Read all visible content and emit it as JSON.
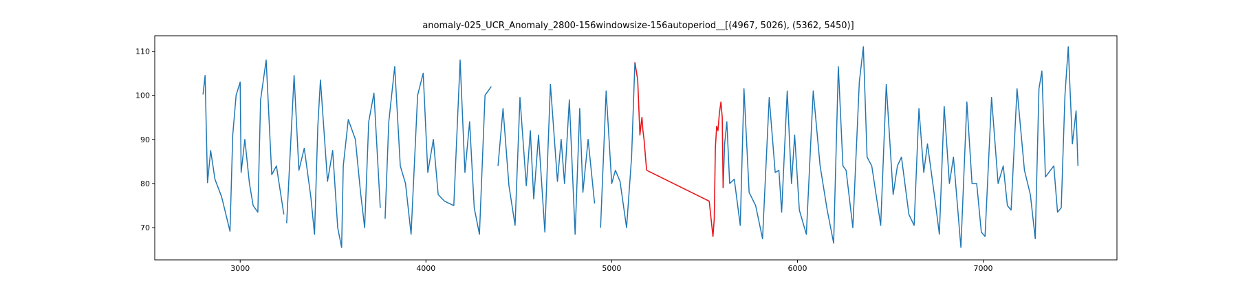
{
  "chart_data": {
    "type": "line",
    "title": "anomaly-025_UCR_Anomaly_2800-156windowsize-156autoperiod__[(4967, 5026), (5362, 5450)]",
    "xlabel": "",
    "ylabel": "",
    "xlim": [
      2540,
      7720
    ],
    "ylim": [
      62.7,
      113.5
    ],
    "xticks": [
      3000,
      4000,
      5000,
      6000,
      7000
    ],
    "yticks": [
      70,
      80,
      90,
      100,
      110
    ],
    "grid": false,
    "colors": {
      "series": "#1f77b4",
      "anomaly": "#e8161b"
    },
    "series": [
      {
        "x": [
          2800,
          2811,
          2824,
          2841,
          2864,
          2900,
          2945,
          2960,
          2978,
          3000,
          3005,
          3025,
          3050,
          3070,
          3095,
          3110,
          3140,
          3170,
          3195,
          3235
        ],
        "y": [
          100.2,
          104.5,
          80.2,
          87.5,
          81,
          77,
          69.2,
          91,
          100,
          103,
          82.5,
          90,
          80,
          75,
          73.5,
          99,
          108,
          82,
          84,
          73
        ]
      },
      {
        "x": [
          3250,
          3290,
          3316,
          3345,
          3380,
          3400,
          3418,
          3432,
          3470,
          3498,
          3525,
          3546,
          3555,
          3582,
          3620,
          3648,
          3670,
          3692,
          3720,
          3754
        ],
        "y": [
          71,
          104.5,
          83,
          88,
          77,
          68.5,
          93,
          103.5,
          80.5,
          87.5,
          70,
          65.5,
          84,
          94.5,
          90,
          78,
          70,
          94,
          100.5,
          74.5
        ]
      },
      {
        "x": [
          3780,
          3800,
          3832,
          3862,
          3890,
          3920,
          3955,
          3985,
          4010,
          4040,
          4066,
          4100,
          4150,
          4184,
          4210,
          4235,
          4260,
          4288,
          4318,
          4352
        ],
        "y": [
          72,
          94,
          106.5,
          84,
          80,
          68.5,
          100,
          105,
          82.5,
          90,
          77.5,
          76,
          75,
          108,
          82.5,
          94,
          74.5,
          68.5,
          100,
          102
        ]
      },
      {
        "x": [
          4388,
          4415,
          4447,
          4480,
          4506,
          4540,
          4562,
          4580,
          4606,
          4640,
          4670,
          4708,
          4728,
          4746,
          4772,
          4803,
          4828,
          4845,
          4873,
          4908
        ],
        "y": [
          84,
          97,
          79.5,
          70.5,
          99.5,
          79.5,
          92,
          76.5,
          91,
          69,
          102.5,
          80.5,
          90,
          80,
          99,
          68.5,
          97,
          78,
          90,
          75.5
        ]
      },
      {
        "x": [
          4940,
          4970,
          5000,
          5020,
          5045,
          5080,
          5107,
          5125
        ],
        "y": [
          70,
          101,
          80,
          83,
          80.5,
          70,
          86,
          107.5
        ]
      },
      {
        "x": [
          5600,
          5608,
          5620,
          5635,
          5660,
          5692,
          5712,
          5740,
          5775,
          5812,
          5848,
          5880,
          5900,
          5915,
          5945,
          5968,
          5985,
          6010,
          6048,
          6085,
          6100,
          6122,
          6160,
          6195,
          6220,
          6245,
          6262,
          6298,
          6333,
          6355,
          6375,
          6400,
          6448,
          6478,
          6515,
          6538,
          6560,
          6600,
          6628,
          6654,
          6680,
          6700,
          6740,
          6764,
          6790,
          6818,
          6840,
          6880,
          6912,
          6940,
          6965,
          6990,
          7010,
          7045,
          7080,
          7108,
          7130,
          7150,
          7182,
          7222,
          7254,
          7280,
          7300,
          7316,
          7335,
          7380,
          7400,
          7420,
          7440,
          7458,
          7480,
          7500,
          7510
        ],
        "y": [
          79,
          89,
          94,
          80,
          81,
          70.5,
          101.5,
          78,
          75,
          67.5,
          99.5,
          82.5,
          83,
          73.5,
          101,
          80,
          91,
          74,
          68.5,
          101,
          94,
          84,
          74,
          66.5,
          106.5,
          84,
          83,
          70,
          103,
          111,
          86,
          84,
          70.5,
          102.5,
          77.5,
          84,
          86,
          73,
          70.5,
          97,
          82.5,
          89,
          76.5,
          68.5,
          97.5,
          80,
          86,
          65.5,
          98.5,
          80,
          80,
          69,
          68,
          99.5,
          80,
          84,
          75,
          74,
          101.5,
          83,
          77.5,
          67.5,
          101.5,
          105.5,
          81.5,
          84,
          73.5,
          74.5,
          100,
          111,
          89,
          96.5,
          84
        ]
      }
    ],
    "anomaly_segments": [
      {
        "x": [
          5125,
          5140,
          5152,
          5157,
          5163,
          5168,
          5174,
          5182,
          5188
        ],
        "y": [
          107.5,
          103.5,
          91,
          93,
          95,
          92,
          90,
          86,
          83
        ]
      },
      {
        "x": [
          5188,
          5525
        ],
        "y": [
          83,
          76
        ]
      },
      {
        "x": [
          5525,
          5535,
          5545,
          5552,
          5558,
          5565,
          5572,
          5580,
          5588,
          5595,
          5600
        ],
        "y": [
          76,
          72,
          68,
          72,
          88,
          93,
          92,
          96,
          98.5,
          95,
          79
        ]
      }
    ]
  }
}
